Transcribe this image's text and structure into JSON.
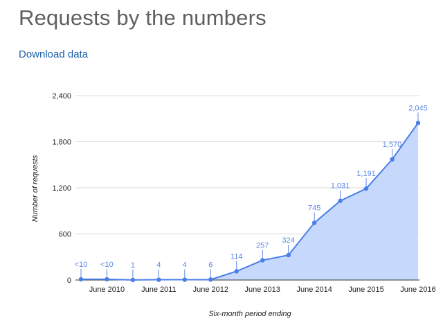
{
  "page": {
    "title": "Requests by the numbers",
    "download_label": "Download data"
  },
  "colors": {
    "line": "#4a7ee8",
    "area": "#c6d8fb",
    "label": "#5b86e6",
    "grid": "#d8d8d8",
    "axis": "#222222",
    "title": "#5f5f5f",
    "link": "#1a5ea8"
  },
  "chart_data": {
    "type": "area",
    "xlabel": "Six-month period ending",
    "ylabel": "Number of requests",
    "ylim": [
      0,
      2400
    ],
    "yticks": [
      0,
      600,
      1200,
      1800,
      2400
    ],
    "ytick_labels": [
      "0",
      "600",
      "1,200",
      "1,800",
      "2,400"
    ],
    "x_tick_labels": [
      "June 2010",
      "June 2011",
      "June 2012",
      "June 2013",
      "June 2014",
      "June 2015",
      "June 2016"
    ],
    "x_tick_indices": [
      1,
      3,
      5,
      7,
      9,
      11,
      13
    ],
    "grid": true,
    "legend": "none",
    "series": [
      {
        "values": [
          10,
          10,
          1,
          4,
          4,
          6,
          114,
          257,
          324,
          745,
          1031,
          1191,
          1570,
          2045
        ],
        "labels": [
          "<10",
          "<10",
          "1",
          "4",
          "4",
          "6",
          "114",
          "257",
          "324",
          "745",
          "1,031",
          "1,191",
          "1,570",
          "2,045"
        ]
      }
    ]
  }
}
